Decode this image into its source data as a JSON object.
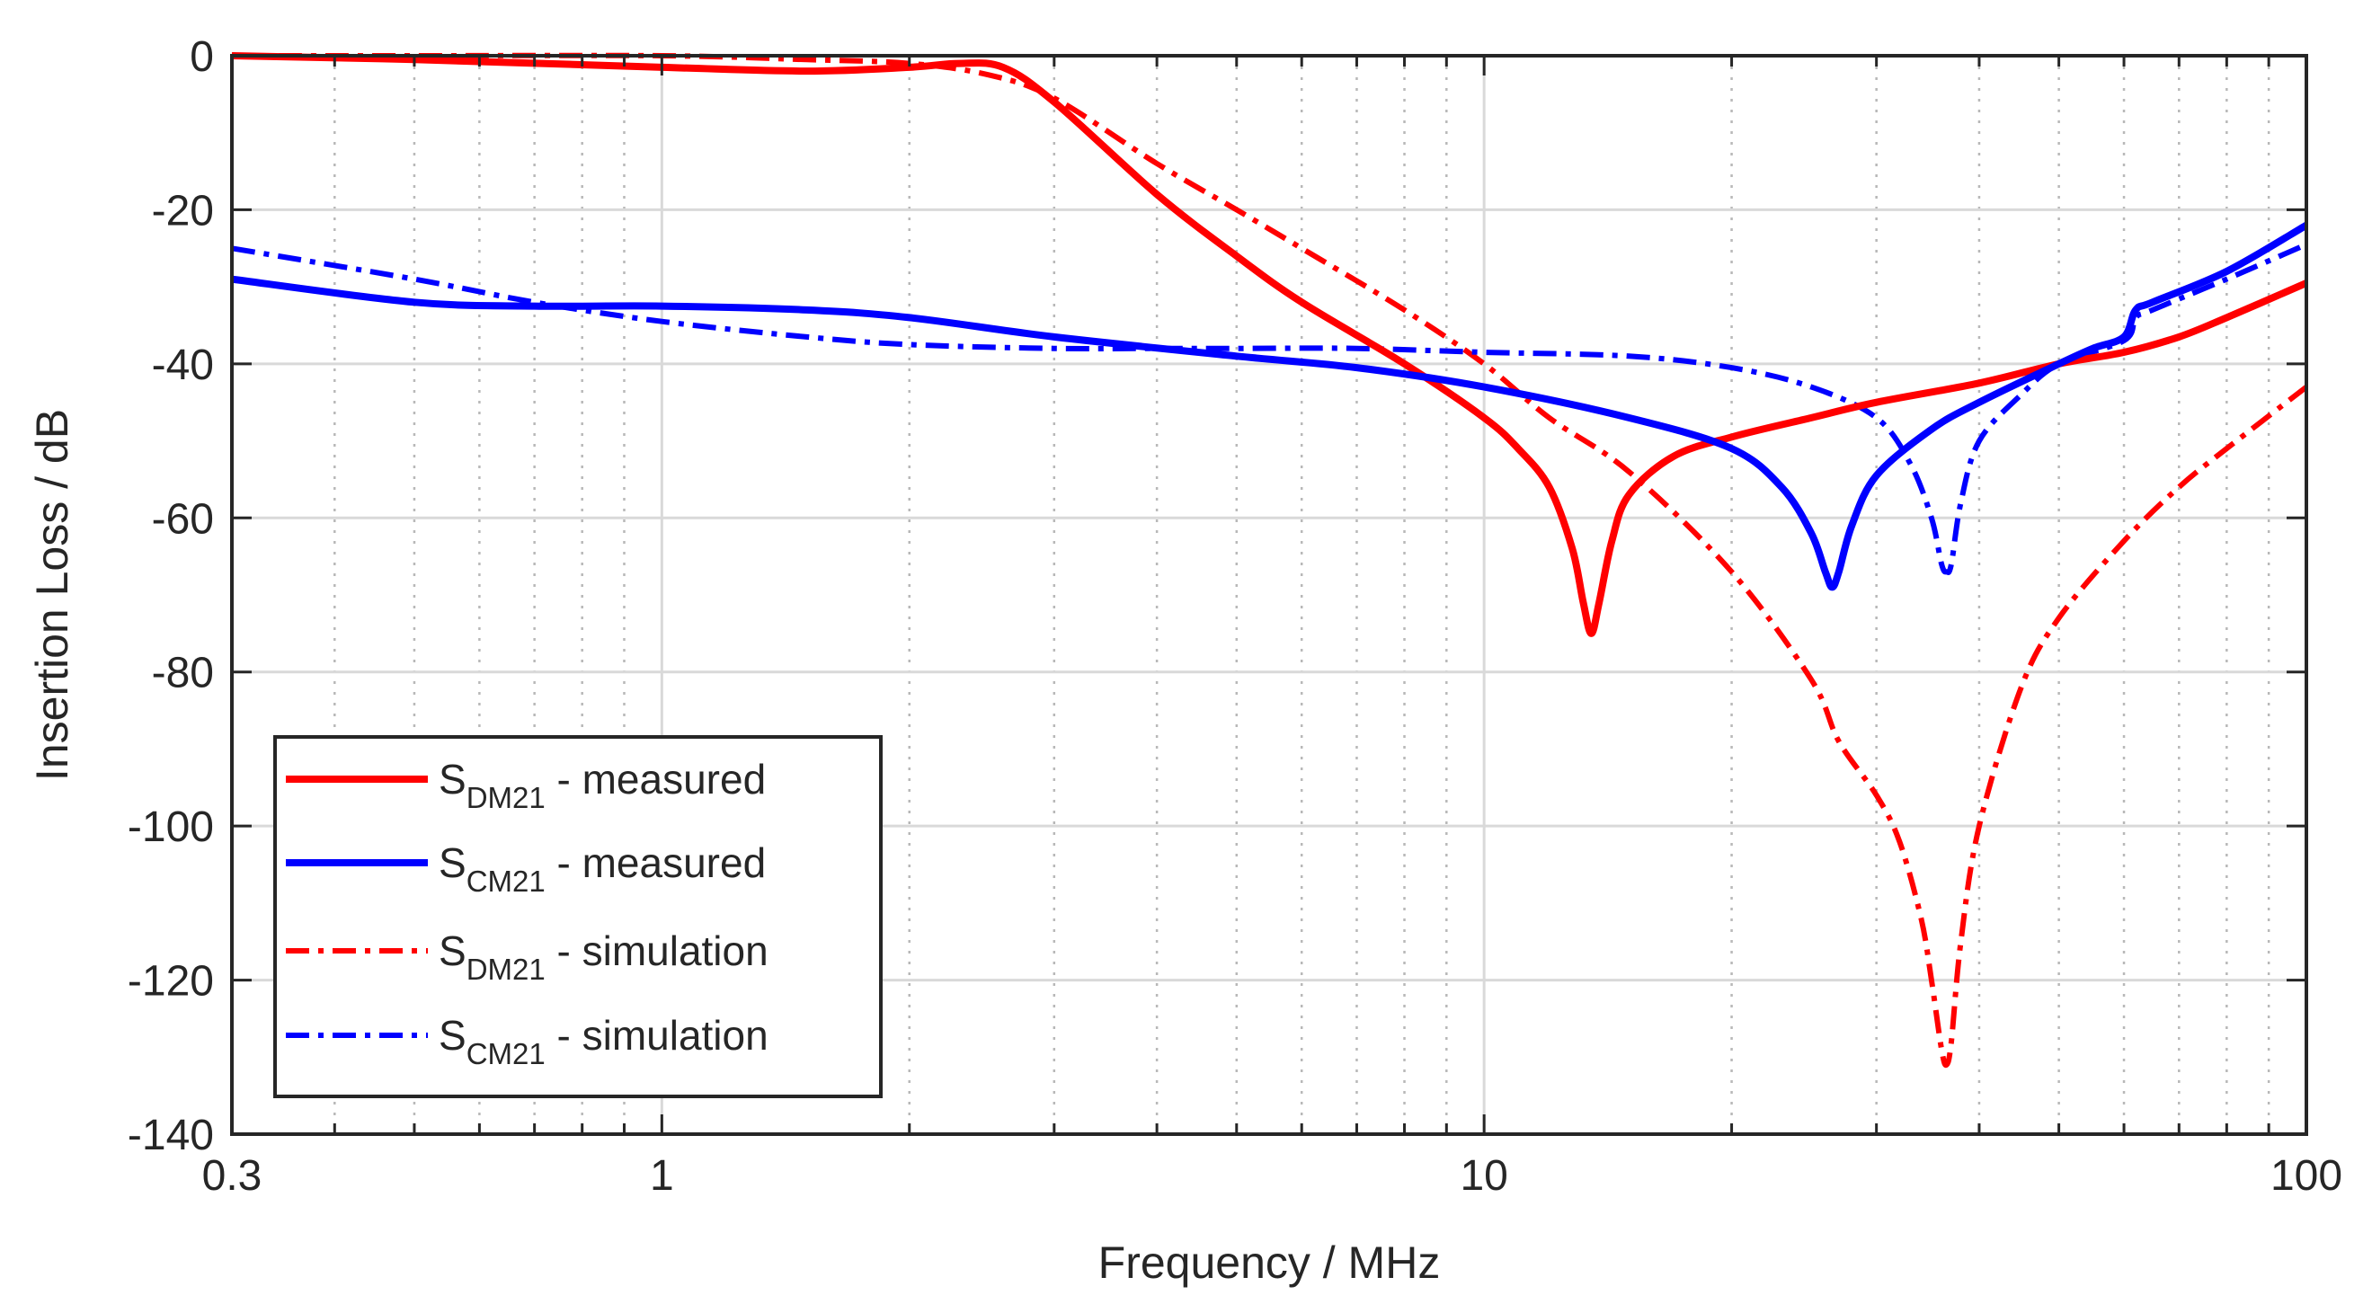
{
  "chart_data": {
    "type": "line",
    "xscale": "log",
    "title": "",
    "xlabel": "Frequency / MHz",
    "ylabel": "Insertion Loss / dB",
    "xlim": [
      0.3,
      100
    ],
    "ylim": [
      -140,
      0
    ],
    "xticks": [
      {
        "value": 0.3,
        "label": "0.3"
      },
      {
        "value": 1,
        "label": "1"
      },
      {
        "value": 10,
        "label": "10"
      },
      {
        "value": 100,
        "label": "100"
      }
    ],
    "yticks": [
      {
        "value": 0,
        "label": "0"
      },
      {
        "value": -20,
        "label": "-20"
      },
      {
        "value": -40,
        "label": "-40"
      },
      {
        "value": -60,
        "label": "-60"
      },
      {
        "value": -80,
        "label": "-80"
      },
      {
        "value": -100,
        "label": "-100"
      },
      {
        "value": -120,
        "label": "-120"
      },
      {
        "value": -140,
        "label": "-140"
      }
    ],
    "grid": true,
    "legend_position": "bottom-left",
    "series": [
      {
        "name": "S_DM21 - measured",
        "legend": {
          "symbol": "S",
          "subscript": "DM21",
          "text": " - measured"
        },
        "color": "#ff0000",
        "style": "solid",
        "x": [
          0.3,
          0.5,
          1,
          1.5,
          2,
          2.3,
          2.6,
          3,
          4,
          5,
          6,
          8,
          10,
          11,
          12,
          12.8,
          13.2,
          13.5,
          13.8,
          14.3,
          15,
          17,
          20,
          25,
          30,
          40,
          50,
          60,
          70,
          80,
          100
        ],
        "y": [
          0,
          -0.5,
          -1.5,
          -2,
          -1.5,
          -1,
          -1.5,
          -6,
          -18,
          -26,
          -32,
          -40,
          -47,
          -51,
          -56,
          -64,
          -71,
          -75,
          -71,
          -63,
          -57,
          -52,
          -49.5,
          -47,
          -45,
          -42.5,
          -40,
          -38.5,
          -36.5,
          -34,
          -29.5
        ]
      },
      {
        "name": "S_CM21 - measured",
        "legend": {
          "symbol": "S",
          "subscript": "CM21",
          "text": " - measured"
        },
        "color": "#0000ff",
        "style": "solid",
        "x": [
          0.3,
          0.5,
          0.7,
          1,
          1.5,
          2,
          3,
          5,
          7,
          10,
          15,
          20,
          23,
          25,
          26,
          26.5,
          27,
          28,
          30,
          35,
          40,
          50,
          55,
          60,
          62,
          65,
          80,
          100
        ],
        "y": [
          -29,
          -32,
          -32.5,
          -32.5,
          -33,
          -34,
          -36.5,
          -39,
          -40.5,
          -43,
          -47,
          -51,
          -56,
          -62,
          -67,
          -69,
          -67,
          -61,
          -54.5,
          -48.5,
          -45,
          -40,
          -38,
          -36.5,
          -33,
          -32,
          -28,
          -22
        ]
      },
      {
        "name": "S_DM21 - simulation",
        "legend": {
          "symbol": "S",
          "subscript": "DM21",
          "text": " - simulation"
        },
        "color": "#ff0000",
        "style": "dashdot",
        "x": [
          0.3,
          0.5,
          1,
          1.5,
          2,
          2.5,
          3,
          4,
          5,
          6,
          8,
          10,
          12,
          15,
          20,
          25,
          27,
          30,
          32,
          34,
          35,
          36,
          36.5,
          37,
          38,
          40,
          45,
          50,
          60,
          70,
          80,
          100
        ],
        "y": [
          0,
          0,
          0,
          -0.5,
          -1,
          -2.5,
          -5.5,
          -14,
          -20,
          -25,
          -33,
          -40,
          -47,
          -54,
          -67,
          -81,
          -89,
          -96,
          -102,
          -112,
          -120,
          -129,
          -131,
          -128,
          -115,
          -100,
          -82,
          -73,
          -63,
          -56,
          -51,
          -43
        ]
      },
      {
        "name": "S_CM21 - simulation",
        "legend": {
          "symbol": "S",
          "subscript": "CM21",
          "text": " - simulation"
        },
        "color": "#0000ff",
        "style": "dashdot",
        "x": [
          0.3,
          0.5,
          0.7,
          1,
          1.5,
          2,
          3,
          4,
          5,
          7,
          10,
          15,
          20,
          25,
          30,
          33,
          35,
          36,
          36.5,
          37,
          38,
          40,
          45,
          50,
          60,
          62,
          65,
          80,
          100
        ],
        "y": [
          -25,
          -29,
          -32,
          -34.5,
          -36.5,
          -37.5,
          -38,
          -38,
          -38,
          -38,
          -38.5,
          -39,
          -40.5,
          -43,
          -47,
          -53,
          -60,
          -66,
          -67,
          -66,
          -58,
          -50,
          -44,
          -40,
          -37,
          -34,
          -33,
          -29,
          -24.5
        ]
      }
    ]
  }
}
